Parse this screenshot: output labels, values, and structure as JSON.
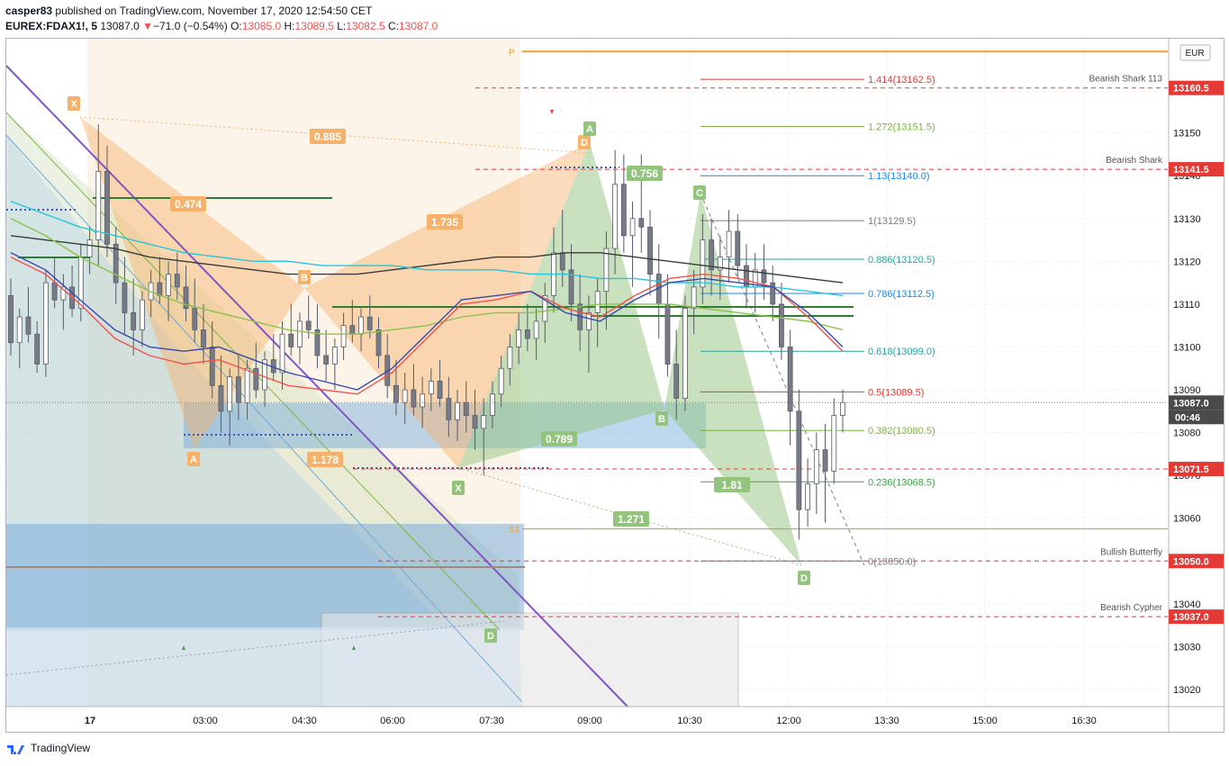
{
  "header": {
    "author": "casper83",
    "published": "published on TradingView.com, November 17, 2020 12:54:50 CET",
    "symbol": "EUREX:FDAX1!, 5",
    "last": "13087.0",
    "arrow": "▼",
    "change": "−71.0 (−0.54%)",
    "o_label": "O:",
    "o": "13085.0",
    "h_label": "H:",
    "h": "13089.5",
    "l_label": "L:",
    "l": "13082.5",
    "c_label": "C:",
    "c": "13087.0"
  },
  "footer": {
    "brand": "TradingView"
  },
  "colors": {
    "up": "#ffffff",
    "down": "#787b86",
    "wick": "#555a66",
    "accent_red": "#e53935",
    "orange_pattern": "#f6b26b",
    "green_pattern": "#93c47d",
    "blue_zone": "#6fa8dc"
  },
  "chart_data": {
    "type": "candlestick",
    "currency": "EUR",
    "ylim": [
      13016,
      13172
    ],
    "y_ticks": [
      13020,
      13030,
      13040,
      13050,
      13060,
      13070,
      13080,
      13090,
      13100,
      13110,
      13120,
      13130,
      13140,
      13150
    ],
    "x_tick_labels": [
      "17",
      "03:00",
      "04:30",
      "06:00",
      "07:30",
      "09:00",
      "10:30",
      "12:00",
      "13:30",
      "15:00",
      "16:30"
    ],
    "price_tags": [
      {
        "value": 13160.5,
        "label": "13160.5",
        "kind": "red"
      },
      {
        "value": 13141.5,
        "label": "13141.5",
        "kind": "red"
      },
      {
        "value": 13087.0,
        "label": "13087.0",
        "kind": "current"
      },
      {
        "value": 13071.5,
        "label": "13071.5",
        "kind": "red"
      },
      {
        "value": 13050.0,
        "label": "13050.0",
        "kind": "red"
      },
      {
        "value": 13037.0,
        "label": "13037.0",
        "kind": "red"
      }
    ],
    "countdown": "00:46",
    "horizontal_level_labels": [
      {
        "label": "Bearish Shark 113",
        "value": 13160.5
      },
      {
        "label": "Bearish Shark",
        "value": 13141.5
      },
      {
        "label": "Bullish Butterfly",
        "value": 13050.0
      },
      {
        "label": "Bearish Cypher",
        "value": 13037.0
      }
    ],
    "fib_levels": [
      {
        "label": "1.414(13162.5)",
        "value": 13162.5,
        "color": "#e53935"
      },
      {
        "label": "1.272(13151.5)",
        "value": 13151.5,
        "color": "#7cb342"
      },
      {
        "label": "1.13(13140.0)",
        "value": 13140.0,
        "color": "#1e88e5"
      },
      {
        "label": "1(13129.5)",
        "value": 13129.5,
        "color": "#787b86"
      },
      {
        "label": "0.886(13120.5)",
        "value": 13120.5,
        "color": "#26a69a"
      },
      {
        "label": "0.786(13112.5)",
        "value": 13112.5,
        "color": "#1e88e5"
      },
      {
        "label": "0.618(13099.0)",
        "value": 13099.0,
        "color": "#26a69a"
      },
      {
        "label": "0.5(13089.5)",
        "value": 13089.5,
        "color": "#e53935"
      },
      {
        "label": "0.382(13080.5)",
        "value": 13080.5,
        "color": "#7cb342"
      },
      {
        "label": "0.236(13068.5)",
        "value": 13068.5,
        "color": "#43a047"
      },
      {
        "label": "0(13050.0)",
        "value": 13050.0,
        "color": "#787b86"
      }
    ],
    "pivot_labels": [
      {
        "label": "P",
        "value": 13169.0
      },
      {
        "label": "S1",
        "value": 13057.5
      }
    ],
    "pattern_point_labels": [
      {
        "label": "X",
        "pattern": "orange",
        "value": 13158.0
      },
      {
        "label": "A",
        "pattern": "orange",
        "value": 13070.0
      },
      {
        "label": "B",
        "pattern": "orange",
        "value": 13112.0
      },
      {
        "label": "C",
        "pattern": "orange",
        "value": 13069.0
      },
      {
        "label": "D",
        "pattern": "orange",
        "value": 13145.0
      },
      {
        "label": "X",
        "pattern": "green",
        "value": 13065.0
      },
      {
        "label": "A",
        "pattern": "green",
        "value": 13148.0
      },
      {
        "label": "B",
        "pattern": "green",
        "value": 13084.0
      },
      {
        "label": "C",
        "pattern": "green",
        "value": 13131.0
      },
      {
        "label": "D",
        "pattern": "green",
        "value": 13049.0
      },
      {
        "label": "D",
        "pattern": "green-old",
        "value": 13035.0
      }
    ],
    "ratio_labels": [
      {
        "label": "0.885",
        "pattern": "orange"
      },
      {
        "label": "0.474",
        "pattern": "orange"
      },
      {
        "label": "1.735",
        "pattern": "orange"
      },
      {
        "label": "1.178",
        "pattern": "orange"
      },
      {
        "label": "0.756",
        "pattern": "green"
      },
      {
        "label": "0.789",
        "pattern": "green"
      },
      {
        "label": "1.81",
        "pattern": "green"
      },
      {
        "label": "1.271",
        "pattern": "green"
      }
    ],
    "candles": [
      [
        13112,
        13116,
        13098,
        13101
      ],
      [
        13101,
        13109,
        13095,
        13107
      ],
      [
        13107,
        13114,
        13101,
        13103
      ],
      [
        13103,
        13106,
        13094,
        13096
      ],
      [
        13096,
        13118,
        13093,
        13115
      ],
      [
        13115,
        13121,
        13109,
        13111
      ],
      [
        13111,
        13117,
        13104,
        13114
      ],
      [
        13114,
        13119,
        13107,
        13109
      ],
      [
        13109,
        13124,
        13106,
        13121
      ],
      [
        13121,
        13128,
        13117,
        13125
      ],
      [
        13125,
        13152,
        13119,
        13141
      ],
      [
        13141,
        13147,
        13121,
        13124
      ],
      [
        13124,
        13128,
        13110,
        13115
      ],
      [
        13115,
        13121,
        13103,
        13108
      ],
      [
        13108,
        13116,
        13098,
        13104
      ],
      [
        13104,
        13113,
        13100,
        13111
      ],
      [
        13111,
        13118,
        13107,
        13115
      ],
      [
        13115,
        13121,
        13110,
        13112
      ],
      [
        13112,
        13120,
        13106,
        13117
      ],
      [
        13117,
        13122,
        13111,
        13114
      ],
      [
        13114,
        13119,
        13106,
        13109
      ],
      [
        13109,
        13116,
        13101,
        13104
      ],
      [
        13104,
        13110,
        13096,
        13100
      ],
      [
        13100,
        13106,
        13088,
        13091
      ],
      [
        13091,
        13098,
        13080,
        13085
      ],
      [
        13085,
        13095,
        13077,
        13093
      ],
      [
        13093,
        13098,
        13083,
        13087
      ],
      [
        13087,
        13097,
        13083,
        13095
      ],
      [
        13095,
        13101,
        13088,
        13090
      ],
      [
        13090,
        13099,
        13086,
        13097
      ],
      [
        13097,
        13103,
        13092,
        13094
      ],
      [
        13094,
        13106,
        13090,
        13103
      ],
      [
        13103,
        13110,
        13098,
        13100
      ],
      [
        13100,
        13108,
        13096,
        13106
      ],
      [
        13106,
        13112,
        13102,
        13104
      ],
      [
        13104,
        13110,
        13095,
        13098
      ],
      [
        13098,
        13104,
        13092,
        13096
      ],
      [
        13096,
        13102,
        13090,
        13100
      ],
      [
        13100,
        13108,
        13097,
        13105
      ],
      [
        13105,
        13111,
        13101,
        13103
      ],
      [
        13103,
        13109,
        13099,
        13107
      ],
      [
        13107,
        13112,
        13102,
        13104
      ],
      [
        13104,
        13107,
        13095,
        13098
      ],
      [
        13098,
        13103,
        13088,
        13091
      ],
      [
        13091,
        13097,
        13084,
        13087
      ],
      [
        13087,
        13094,
        13082,
        13090
      ],
      [
        13090,
        13096,
        13084,
        13086
      ],
      [
        13086,
        13093,
        13081,
        13089
      ],
      [
        13089,
        13095,
        13085,
        13092
      ],
      [
        13092,
        13097,
        13086,
        13088
      ],
      [
        13088,
        13093,
        13079,
        13083
      ],
      [
        13083,
        13090,
        13078,
        13087
      ],
      [
        13087,
        13092,
        13080,
        13084
      ],
      [
        13084,
        13090,
        13076,
        13081
      ],
      [
        13081,
        13088,
        13070,
        13084
      ],
      [
        13084,
        13092,
        13081,
        13089
      ],
      [
        13089,
        13098,
        13086,
        13095
      ],
      [
        13095,
        13103,
        13091,
        13100
      ],
      [
        13100,
        13108,
        13096,
        13104
      ],
      [
        13104,
        13110,
        13099,
        13102
      ],
      [
        13102,
        13109,
        13097,
        13106
      ],
      [
        13106,
        13115,
        13101,
        13112
      ],
      [
        13112,
        13128,
        13108,
        13122
      ],
      [
        13122,
        13132,
        13114,
        13118
      ],
      [
        13118,
        13124,
        13106,
        13110
      ],
      [
        13110,
        13117,
        13099,
        13104
      ],
      [
        13104,
        13112,
        13094,
        13108
      ],
      [
        13108,
        13116,
        13100,
        13113
      ],
      [
        13113,
        13127,
        13104,
        13123
      ],
      [
        13123,
        13146,
        13117,
        13138
      ],
      [
        13138,
        13145,
        13122,
        13126
      ],
      [
        13126,
        13134,
        13114,
        13130
      ],
      [
        13130,
        13145,
        13122,
        13128
      ],
      [
        13128,
        13132,
        13112,
        13117
      ],
      [
        13117,
        13124,
        13102,
        13110
      ],
      [
        13110,
        13117,
        13093,
        13096
      ],
      [
        13096,
        13104,
        13083,
        13088
      ],
      [
        13088,
        13112,
        13085,
        13109
      ],
      [
        13109,
        13118,
        13103,
        13114
      ],
      [
        13114,
        13131,
        13110,
        13125
      ],
      [
        13125,
        13130,
        13112,
        13118
      ],
      [
        13118,
        13126,
        13111,
        13121
      ],
      [
        13121,
        13132,
        13115,
        13127
      ],
      [
        13127,
        13131,
        13116,
        13119
      ],
      [
        13119,
        13124,
        13109,
        13114
      ],
      [
        13114,
        13122,
        13108,
        13118
      ],
      [
        13118,
        13124,
        13111,
        13115
      ],
      [
        13115,
        13119,
        13106,
        13110
      ],
      [
        13110,
        13115,
        13097,
        13100
      ],
      [
        13100,
        13104,
        13077,
        13085
      ],
      [
        13085,
        13090,
        13055,
        13062
      ],
      [
        13062,
        13074,
        13058,
        13068
      ],
      [
        13068,
        13080,
        13061,
        13076
      ],
      [
        13076,
        13082,
        13059,
        13071
      ],
      [
        13071,
        13088,
        13068,
        13084
      ],
      [
        13084,
        13090,
        13080,
        13087
      ]
    ],
    "moving_averages": [
      {
        "name": "",
        "color": "#3a3a3a",
        "values": [
          13126,
          13125,
          13124,
          13123,
          13121,
          13120,
          13119,
          13118,
          13117,
          13117,
          13117,
          13118,
          13119,
          13120,
          13121,
          13121,
          13122,
          13122,
          13121,
          13120,
          13119,
          13118,
          13117,
          13116,
          13115
        ]
      },
      {
        "name": "",
        "color": "#26c6da",
        "values": [
          13134,
          13131,
          13128,
          13126,
          13124,
          13122,
          13121,
          13120,
          13120,
          13119,
          13119,
          13119,
          13118,
          13118,
          13118,
          13117,
          13117,
          13116,
          13116,
          13115,
          13115,
          13114,
          13114,
          13113,
          13112
        ]
      },
      {
        "name": "",
        "color": "#8bc34a",
        "values": [
          13130,
          13126,
          13121,
          13117,
          13113,
          13110,
          13108,
          13106,
          13104,
          13103,
          13103,
          13104,
          13105,
          13107,
          13108,
          13108,
          13109,
          13110,
          13110,
          13110,
          13109,
          13108,
          13107,
          13106,
          13104
        ]
      },
      {
        "name": "",
        "color": "#ef5350",
        "values": [
          13121,
          13117,
          13110,
          13102,
          13098,
          13096,
          13097,
          13094,
          13091,
          13090,
          13089,
          13094,
          13102,
          13110,
          13111,
          13113,
          13109,
          13107,
          13112,
          13116,
          13117,
          13116,
          13114,
          13107,
          13099
        ]
      },
      {
        "name": "",
        "color": "#3949ab",
        "values": [
          13122,
          13118,
          13111,
          13104,
          13100,
          13099,
          13100,
          13097,
          13094,
          13092,
          13090,
          13095,
          13103,
          13111,
          13112,
          13113,
          13108,
          13106,
          13111,
          13115,
          13116,
          13115,
          13114,
          13108,
          13100
        ]
      }
    ]
  }
}
